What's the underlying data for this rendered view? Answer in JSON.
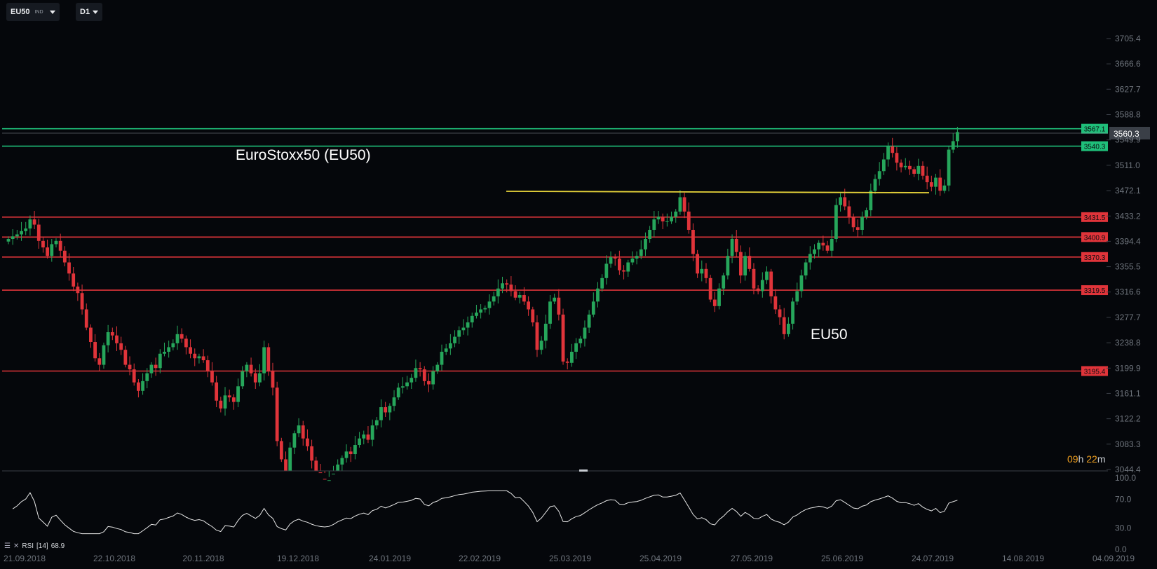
{
  "toolbar": {
    "symbol": "EU50",
    "symbol_type": "IND",
    "timeframe": "D1"
  },
  "countdown": {
    "hours": "09",
    "h_unit": "h",
    "minutes": "22",
    "m_unit": "m"
  },
  "rsi": {
    "name": "RSI",
    "period": "[14]",
    "value": "68.9",
    "axis_ticks": [
      "100.0",
      "70.0",
      "30.0",
      "0.0"
    ]
  },
  "colors": {
    "background": "#05070b",
    "up": "#26a65b",
    "down": "#e0343a",
    "support": "#e0343a",
    "resistance": "#1fbf7a",
    "trendline": "#e6d33a",
    "rsi_line": "#e8e8e8"
  },
  "chart_data": {
    "type": "candlestick",
    "title": "EuroStoxx50 (EU50)",
    "annotation": "EU50",
    "y_ticks": [
      "3705.4",
      "3666.6",
      "3627.7",
      "3588.8",
      "3549.9",
      "3511.0",
      "3472.1",
      "3433.2",
      "3394.4",
      "3355.5",
      "3316.6",
      "3277.7",
      "3238.8",
      "3199.9",
      "3161.1",
      "3122.2",
      "3083.3",
      "3044.4"
    ],
    "ylim": [
      3044.4,
      3705.4
    ],
    "x_ticks": [
      "21.09.2018",
      "22.10.2018",
      "20.11.2018",
      "19.12.2018",
      "24.01.2019",
      "22.02.2019",
      "25.03.2019",
      "25.04.2019",
      "27.05.2019",
      "25.06.2019",
      "24.07.2019",
      "14.08.2019",
      "04.09.2019"
    ],
    "current_price": "3560.3",
    "horizontal_levels": [
      {
        "label": "3567.1",
        "value": 3567.1,
        "color": "green"
      },
      {
        "label": "3540.3",
        "value": 3540.3,
        "color": "green"
      },
      {
        "label": "3431.5",
        "value": 3431.5,
        "color": "red"
      },
      {
        "label": "3400.9",
        "value": 3400.9,
        "color": "red"
      },
      {
        "label": "3370.3",
        "value": 3370.3,
        "color": "red"
      },
      {
        "label": "3319.5",
        "value": 3319.5,
        "color": "red"
      },
      {
        "label": "3195.4",
        "value": 3195.4,
        "color": "red"
      }
    ],
    "trendline": {
      "value": 3470,
      "from": "13.03.2019",
      "to": "29.07.2019"
    },
    "closes": [
      3398,
      3402,
      3405,
      3410,
      3414,
      3428,
      3420,
      3395,
      3385,
      3372,
      3390,
      3395,
      3380,
      3362,
      3345,
      3325,
      3315,
      3290,
      3262,
      3240,
      3215,
      3205,
      3235,
      3255,
      3250,
      3238,
      3228,
      3205,
      3198,
      3178,
      3165,
      3180,
      3192,
      3205,
      3200,
      3222,
      3225,
      3232,
      3238,
      3252,
      3245,
      3232,
      3222,
      3215,
      3218,
      3212,
      3195,
      3178,
      3150,
      3138,
      3158,
      3155,
      3148,
      3172,
      3195,
      3205,
      3192,
      3178,
      3192,
      3232,
      3195,
      3170,
      3088,
      3060,
      3040,
      3078,
      3100,
      3112,
      3092,
      3080,
      3058,
      3040,
      3030,
      3025,
      3028,
      3038,
      3052,
      3062,
      3072,
      3068,
      3082,
      3092,
      3098,
      3090,
      3112,
      3120,
      3140,
      3132,
      3142,
      3155,
      3170,
      3172,
      3178,
      3185,
      3200,
      3198,
      3180,
      3175,
      3195,
      3205,
      3225,
      3230,
      3238,
      3248,
      3258,
      3262,
      3270,
      3280,
      3285,
      3290,
      3292,
      3302,
      3310,
      3322,
      3330,
      3328,
      3318,
      3308,
      3312,
      3302,
      3290,
      3270,
      3228,
      3242,
      3268,
      3302,
      3308,
      3282,
      3210,
      3208,
      3225,
      3238,
      3245,
      3262,
      3282,
      3302,
      3322,
      3338,
      3360,
      3370,
      3368,
      3350,
      3348,
      3362,
      3368,
      3372,
      3382,
      3398,
      3412,
      3428,
      3432,
      3425,
      3425,
      3432,
      3440,
      3462,
      3440,
      3412,
      3375,
      3345,
      3352,
      3338,
      3305,
      3295,
      3322,
      3342,
      3372,
      3398,
      3378,
      3342,
      3372,
      3352,
      3322,
      3318,
      3335,
      3348,
      3310,
      3290,
      3278,
      3252,
      3268,
      3302,
      3318,
      3342,
      3362,
      3375,
      3382,
      3392,
      3388,
      3380,
      3398,
      3450,
      3462,
      3448,
      3432,
      3416,
      3412,
      3432,
      3442,
      3472,
      3490,
      3502,
      3520,
      3540,
      3530,
      3515,
      3508,
      3510,
      3505,
      3498,
      3510,
      3495,
      3485,
      3478,
      3492,
      3472,
      3480,
      3535,
      3548,
      3562
    ]
  }
}
